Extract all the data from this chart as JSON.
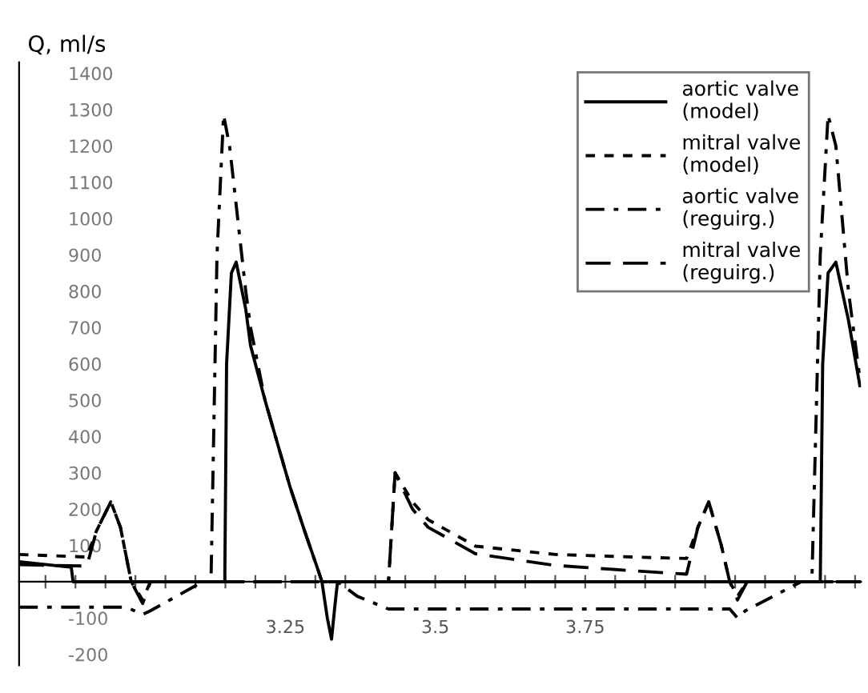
{
  "chart_data": {
    "type": "line",
    "ylabel": "Q, ml/s",
    "xlim": [
      2.806,
      4.21
    ],
    "ylim": [
      -230,
      1430
    ],
    "xticks": [
      {
        "value": 2.85,
        "label": null
      },
      {
        "value": 2.9,
        "label": null
      },
      {
        "value": 2.95,
        "label": null
      },
      {
        "value": 3.0,
        "label": null
      },
      {
        "value": 3.05,
        "label": null
      },
      {
        "value": 3.1,
        "label": null
      },
      {
        "value": 3.15,
        "label": null
      },
      {
        "value": 3.2,
        "label": null
      },
      3.25,
      {
        "value": 3.3,
        "label": null
      },
      {
        "value": 3.35,
        "label": null
      },
      {
        "value": 3.4,
        "label": null
      },
      {
        "value": 3.45,
        "label": null
      },
      3.5,
      {
        "value": 3.55,
        "label": null
      },
      {
        "value": 3.6,
        "label": null
      },
      {
        "value": 3.65,
        "label": null
      },
      {
        "value": 3.7,
        "label": null
      },
      3.75,
      {
        "value": 3.8,
        "label": null
      },
      {
        "value": 3.85,
        "label": null
      },
      {
        "value": 3.9,
        "label": null
      },
      {
        "value": 3.95,
        "label": null
      },
      {
        "value": 4.0,
        "label": null
      },
      {
        "value": 4.05,
        "label": null
      },
      {
        "value": 4.1,
        "label": null
      },
      {
        "value": 4.15,
        "label": null
      },
      {
        "value": 4.2,
        "label": null
      }
    ],
    "yticks": [
      -200,
      -100,
      100,
      200,
      300,
      400,
      500,
      600,
      700,
      800,
      900,
      1000,
      1100,
      1200,
      1300,
      1400
    ],
    "grid": false,
    "legend": "top right",
    "marker": "none",
    "series": [
      {
        "name": "aortic valve\n(model)",
        "color": "#000000",
        "line_style": "solid",
        "x": [
          2.806,
          2.893,
          2.896,
          3.149,
          3.152,
          3.16,
          3.168,
          3.184,
          3.192,
          3.216,
          3.237,
          3.258,
          3.282,
          3.303,
          3.311,
          3.32,
          3.327,
          3.333,
          3.337,
          4.142,
          4.146,
          4.155,
          4.168,
          4.189,
          4.208
        ],
        "values": [
          55,
          40,
          0,
          0,
          600,
          850,
          880,
          750,
          650,
          500,
          380,
          260,
          140,
          40,
          0,
          -100,
          -158,
          -60,
          0,
          0,
          600,
          850,
          880,
          720,
          540
        ]
      },
      {
        "name": "mitral valve\n(model)",
        "color": "#000000",
        "line_style": "dotted",
        "x": [
          2.806,
          2.919,
          2.935,
          2.959,
          2.975,
          2.993,
          3.012,
          3.025,
          3.422,
          3.433,
          3.462,
          3.488,
          3.567,
          3.7,
          3.832,
          3.919,
          3.938,
          3.956,
          3.977,
          3.991,
          4.004,
          4.02,
          4.21
        ],
        "values": [
          75,
          68,
          140,
          220,
          150,
          0,
          -50,
          0,
          0,
          300,
          220,
          171,
          98,
          75,
          68,
          64,
          150,
          220,
          100,
          0,
          -40,
          0,
          0
        ]
      },
      {
        "name": "aortic valve\n(reguirg.)",
        "color": "#000000",
        "line_style": "dashdot",
        "x": [
          2.806,
          2.985,
          3.012,
          3.025,
          3.112,
          3.126,
          3.136,
          3.147,
          3.157,
          3.184,
          3.192,
          3.216,
          3.237,
          3.258,
          3.282,
          3.303,
          3.311,
          3.337,
          3.37,
          3.422,
          3.991,
          4.004,
          4.017,
          4.11,
          4.128,
          4.142,
          4.155,
          4.168,
          4.189,
          4.208
        ],
        "values": [
          -70,
          -70,
          -90,
          -80,
          0,
          0,
          900,
          1285,
          1200,
          800,
          700,
          500,
          380,
          260,
          140,
          40,
          0,
          0,
          -40,
          -75,
          -75,
          -100,
          -80,
          0,
          0,
          900,
          1285,
          1200,
          800,
          560
        ]
      },
      {
        "name": "mitral valve\n(reguirg.)",
        "color": "#000000",
        "line_style": "dashed",
        "x": [
          2.806,
          2.919,
          2.935,
          2.959,
          2.975,
          2.993,
          3.012,
          3.025,
          3.422,
          3.433,
          3.462,
          3.488,
          3.567,
          3.7,
          3.832,
          3.919,
          3.938,
          3.956,
          3.977,
          3.991,
          4.004,
          4.02,
          4.21
        ],
        "values": [
          47,
          43,
          140,
          220,
          150,
          0,
          -60,
          0,
          0,
          300,
          200,
          150,
          77,
          45,
          30,
          21,
          150,
          220,
          100,
          0,
          -50,
          0,
          0
        ]
      }
    ]
  }
}
